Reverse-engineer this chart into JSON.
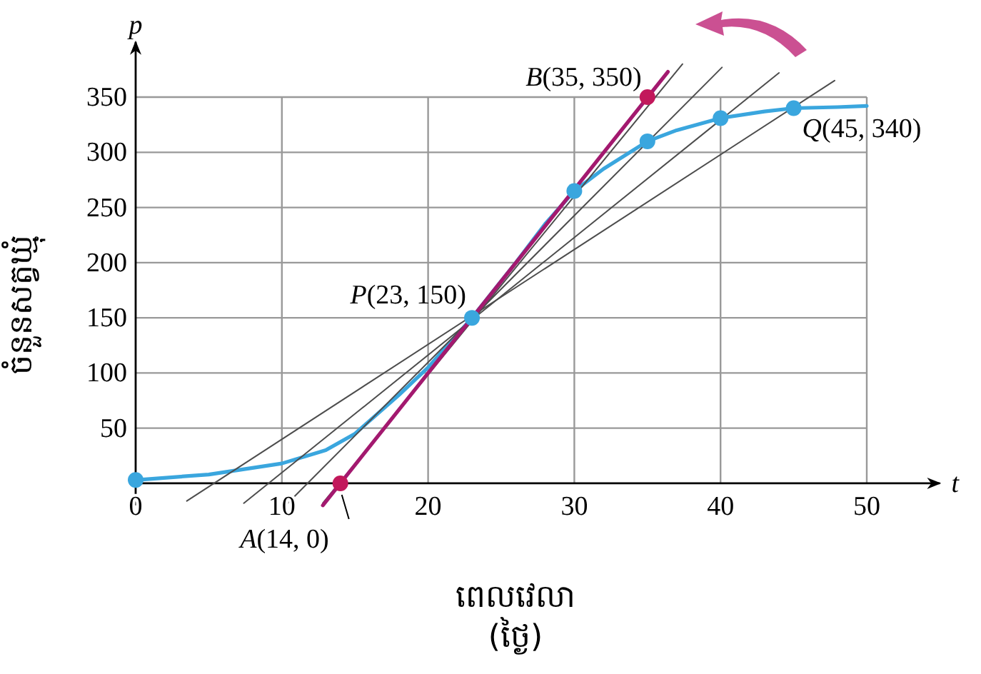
{
  "chart_data": {
    "type": "line",
    "xlabel": "ពេលវេលា\n(ថ្ងៃ)",
    "ylabel": "ចំនួនសត្វឃ្មុំ",
    "xlim": [
      0,
      55
    ],
    "ylim": [
      -20,
      400
    ],
    "xticks": [
      0,
      10,
      20,
      30,
      40,
      50
    ],
    "yticks": [
      50,
      100,
      150,
      200,
      250,
      300,
      350
    ],
    "grid": true,
    "series": [
      {
        "color": "#3aa6de",
        "x": [
          0,
          5,
          10,
          13,
          15,
          18,
          20,
          23,
          26,
          28,
          30,
          32,
          35,
          37,
          40,
          43,
          45,
          48,
          50
        ],
        "values": [
          3,
          8,
          18,
          30,
          45,
          80,
          105,
          150,
          200,
          235,
          265,
          285,
          310,
          320,
          331,
          337,
          340,
          341,
          342
        ]
      },
      {
        "color": "#4d4d4d",
        "x": [
          3.5,
          47.8
        ],
        "values": [
          -16,
          365
        ]
      },
      {
        "color": "#4d4d4d",
        "x": [
          7.4,
          44
        ],
        "values": [
          -18,
          372
        ]
      },
      {
        "color": "#4d4d4d",
        "x": [
          10.4,
          40.1
        ],
        "values": [
          -18,
          377
        ]
      },
      {
        "color": "#4d4d4d",
        "x": [
          12.8,
          37.4
        ],
        "values": [
          -18,
          380
        ]
      },
      {
        "color": "#a3196f",
        "x": [
          12.8,
          36.4
        ],
        "values": [
          -20,
          373
        ]
      },
      {
        "type": "scatter",
        "color": "#3aa6de",
        "x": [
          0,
          23,
          30,
          35,
          40,
          45
        ],
        "values": [
          3,
          150,
          265,
          310,
          331,
          340
        ]
      },
      {
        "type": "scatter",
        "color": "#c2185b",
        "x": [
          14,
          35
        ],
        "values": [
          0,
          350
        ]
      }
    ],
    "annotations": [
      {
        "text": "B(35, 350)",
        "x": 35,
        "y": 350
      },
      {
        "text": "P(23, 150)",
        "x": 23,
        "y": 150
      },
      {
        "text": "Q(45, 340)",
        "x": 45,
        "y": 340
      },
      {
        "text": "A(14, 0)",
        "x": 14,
        "y": 0
      },
      "t",
      "p"
    ]
  }
}
